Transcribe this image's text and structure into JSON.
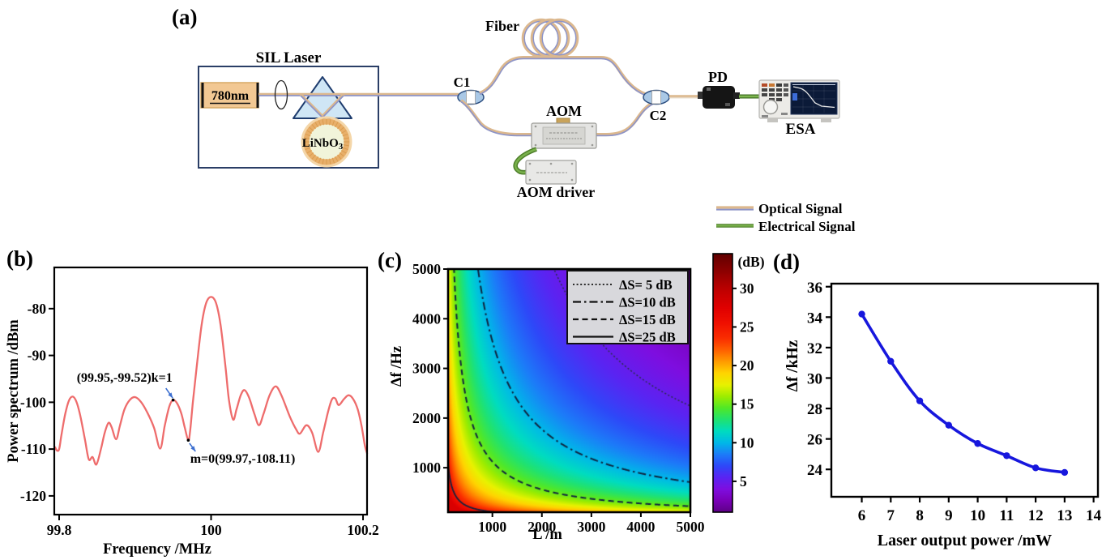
{
  "panels": {
    "a": "(a)",
    "b": "(b)",
    "c": "(c)",
    "d": "(d)"
  },
  "diagram": {
    "labels": {
      "sil_laser": "SIL Laser",
      "laser": "780nm",
      "crystal": "LiNbO",
      "crystal_sub": "3",
      "c1": "C1",
      "c2": "C2",
      "fiber": "Fiber",
      "aom": "AOM",
      "aom_driver": "AOM driver",
      "pd": "PD",
      "esa": "ESA"
    },
    "legend": {
      "optical": "Optical Signal",
      "electrical": "Electrical Signal"
    },
    "colors": {
      "optical_outer": "#dcb88e",
      "optical_inner": "#8e95c8",
      "electrical_outer": "#4c7d28",
      "electrical_inner": "#79b14b",
      "coupler_fill": "#a9c8e6",
      "prism_fill": "#cfe6f5"
    }
  },
  "chart_data": [
    {
      "id": "b",
      "type": "line",
      "xlabel": "Frequency /MHz",
      "ylabel": "Power spectrum /dBm",
      "xlim": [
        99.7936,
        100.2053
      ],
      "ylim": [
        -124.0,
        -71.2
      ],
      "xtick_values": [
        99.8,
        100,
        100.2
      ],
      "xtick_labels": [
        "99.8",
        "100",
        "100.2"
      ],
      "ytick_values": [
        -80,
        -90,
        -100,
        -110,
        -120
      ],
      "ytick_labels": [
        "-80",
        "-90",
        "-100",
        "-110",
        "-120"
      ],
      "line_color": "#ee6c6c",
      "annotation_color": "#3c6fd0",
      "points": [
        [
          99.7945,
          -109.5
        ],
        [
          99.797,
          -110.3
        ],
        [
          99.8,
          -110.0
        ],
        [
          99.803,
          -107.0
        ],
        [
          99.808,
          -102.5
        ],
        [
          99.813,
          -99.6
        ],
        [
          99.818,
          -98.8
        ],
        [
          99.823,
          -100.0
        ],
        [
          99.828,
          -103.0
        ],
        [
          99.834,
          -108.0
        ],
        [
          99.839,
          -112.2
        ],
        [
          99.844,
          -111.7
        ],
        [
          99.849,
          -113.3
        ],
        [
          99.855,
          -110.0
        ],
        [
          99.86,
          -106.5
        ],
        [
          99.865,
          -104.4
        ],
        [
          99.869,
          -105.3
        ],
        [
          99.875,
          -107.9
        ],
        [
          99.88,
          -105.0
        ],
        [
          99.886,
          -101.5
        ],
        [
          99.893,
          -99.5
        ],
        [
          99.9,
          -98.9
        ],
        [
          99.908,
          -100.0
        ],
        [
          99.917,
          -102.5
        ],
        [
          99.925,
          -105.5
        ],
        [
          99.933,
          -109.9
        ],
        [
          99.939,
          -105.0
        ],
        [
          99.945,
          -100.9
        ],
        [
          99.95,
          -99.52
        ],
        [
          99.9555,
          -100.3
        ],
        [
          99.961,
          -102.5
        ],
        [
          99.9655,
          -105.5
        ],
        [
          99.97,
          -108.11
        ],
        [
          99.9725,
          -106.0
        ],
        [
          99.976,
          -100.0
        ],
        [
          99.981,
          -92.5
        ],
        [
          99.9875,
          -83.5
        ],
        [
          99.9935,
          -78.8
        ],
        [
          100.0,
          -77.5
        ],
        [
          100.0065,
          -78.8
        ],
        [
          100.0125,
          -83.5
        ],
        [
          100.019,
          -92.5
        ],
        [
          100.0235,
          -99.5
        ],
        [
          100.029,
          -103.7
        ],
        [
          100.0335,
          -101.5
        ],
        [
          100.039,
          -98.5
        ],
        [
          100.044,
          -97.4
        ],
        [
          100.05,
          -99.0
        ],
        [
          100.057,
          -102.5
        ],
        [
          100.063,
          -104.9
        ],
        [
          100.069,
          -102.5
        ],
        [
          100.077,
          -98.5
        ],
        [
          100.085,
          -96.6
        ],
        [
          100.0925,
          -98.5
        ],
        [
          100.104,
          -103.2
        ],
        [
          100.112,
          -105.8
        ],
        [
          100.117,
          -106.7
        ],
        [
          100.1255,
          -104.9
        ],
        [
          100.133,
          -106.5
        ],
        [
          100.141,
          -110.6
        ],
        [
          100.1475,
          -106.5
        ],
        [
          100.154,
          -102.0
        ],
        [
          100.159,
          -99.4
        ],
        [
          100.1635,
          -99.2
        ],
        [
          100.168,
          -100.6
        ],
        [
          100.175,
          -99.3
        ],
        [
          100.181,
          -98.5
        ],
        [
          100.187,
          -99.3
        ],
        [
          100.193,
          -101.5
        ],
        [
          100.198,
          -105.0
        ],
        [
          100.2025,
          -109.3
        ],
        [
          100.2055,
          -111.0
        ]
      ],
      "annotations": [
        {
          "text": "(99.95,-99.52)k=1",
          "point": [
            99.95,
            -99.52
          ],
          "text_at": [
            99.949,
            -95.6
          ],
          "anchor": "end",
          "arrow": [
            [
              99.9405,
              -97.0
            ],
            [
              99.9495,
              -99.1
            ]
          ]
        },
        {
          "text": "m=0(99.97,-108.11)",
          "point": [
            99.97,
            -108.11
          ],
          "text_at": [
            99.9725,
            -112.9
          ],
          "anchor": "start",
          "arrow": [
            [
              99.9715,
              -108.75
            ],
            [
              99.9795,
              -110.5
            ]
          ]
        }
      ]
    },
    {
      "id": "c",
      "type": "heatmap",
      "xlabel": "L /m",
      "ylabel": "Δf /Hz",
      "colorbar_label": "(dB)",
      "xlim": [
        105,
        5000
      ],
      "ylim": [
        105,
        5000
      ],
      "xtick_values": [
        1000,
        2000,
        3000,
        4000,
        5000
      ],
      "xtick_labels": [
        "1000",
        "2000",
        "3000",
        "4000",
        "5000"
      ],
      "ytick_values": [
        1000,
        2000,
        3000,
        4000,
        5000
      ],
      "ytick_labels": [
        "1000",
        "2000",
        "3000",
        "4000",
        "5000"
      ],
      "model": {
        "base": 25,
        "slope_per_decade": 10,
        "log10_center": 5.05,
        "clamp_min": 1,
        "clamp_max": 28
      },
      "contours": [
        {
          "level": 5,
          "dash": "dotted",
          "label": "ΔS= 5  dB"
        },
        {
          "level": 10,
          "dash": "dashdot",
          "label": "ΔS=10 dB"
        },
        {
          "level": 15,
          "dash": "dashed",
          "label": "ΔS=15 dB"
        },
        {
          "level": 25,
          "dash": "solid",
          "label": "ΔS=25 dB"
        }
      ],
      "colorbar_range": [
        1,
        34.5
      ],
      "colorbar_tick_values": [
        5,
        10,
        15,
        20,
        25,
        30
      ],
      "colorbar_tick_labels": [
        "5",
        "10",
        "15",
        "20",
        "25",
        "30"
      ],
      "colormap_stops": [
        [
          1,
          "#5e0086"
        ],
        [
          2.5,
          "#7a00b8"
        ],
        [
          4,
          "#7e0ee0"
        ],
        [
          5.5,
          "#5a24f2"
        ],
        [
          7,
          "#2e48f8"
        ],
        [
          8.5,
          "#1c7cf8"
        ],
        [
          10,
          "#00b8e8"
        ],
        [
          11.5,
          "#00dcc0"
        ],
        [
          13,
          "#20e270"
        ],
        [
          14.5,
          "#50e828"
        ],
        [
          16,
          "#9eec00"
        ],
        [
          17.5,
          "#e8f200"
        ],
        [
          19,
          "#ffd400"
        ],
        [
          20.5,
          "#ff9c00"
        ],
        [
          22,
          "#ff6000"
        ],
        [
          23.5,
          "#fa2e00"
        ],
        [
          25.5,
          "#f01000"
        ],
        [
          27.5,
          "#e00000"
        ],
        [
          29.5,
          "#c40000"
        ],
        [
          31.5,
          "#9c0000"
        ],
        [
          34.5,
          "#600000"
        ]
      ]
    },
    {
      "id": "d",
      "type": "line",
      "xlabel": "Laser output power /mW",
      "ylabel": "Δf /kHz",
      "xlim": [
        4.95,
        14.15
      ],
      "ylim": [
        22.2,
        36.2
      ],
      "xtick_values": [
        6,
        7,
        8,
        9,
        10,
        11,
        12,
        13,
        14
      ],
      "xtick_labels": [
        "6",
        "7",
        "8",
        "9",
        "10",
        "11",
        "12",
        "13",
        "14"
      ],
      "ytick_values": [
        24,
        26,
        28,
        30,
        32,
        34,
        36
      ],
      "ytick_labels": [
        "24",
        "26",
        "28",
        "30",
        "32",
        "34",
        "36"
      ],
      "line_color": "#1717dd",
      "x": [
        6,
        7,
        8,
        9,
        10,
        11,
        12,
        13
      ],
      "y": [
        34.2,
        31.1,
        28.5,
        26.9,
        25.7,
        24.9,
        24.1,
        23.8
      ]
    }
  ]
}
